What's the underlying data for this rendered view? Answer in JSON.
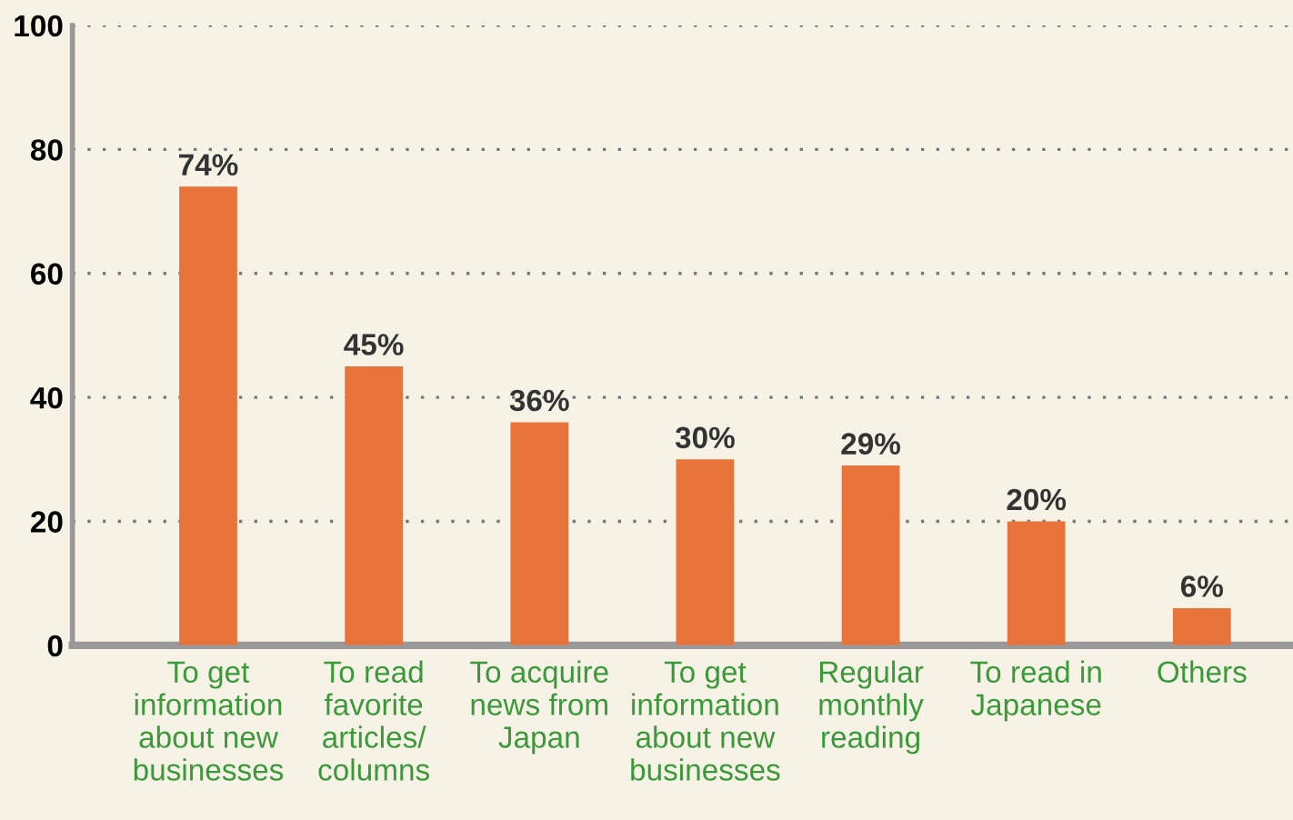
{
  "chart_data": {
    "type": "bar",
    "categories": [
      "To get\ninformation\nabout new\nbusinesses",
      "To read\nfavorite\narticles/\ncolumns",
      "To acquire\nnews from\nJapan",
      "To get\ninformation\nabout new\nbusinesses",
      "Regular\nmonthly\nreading",
      "To read in\nJapanese",
      "Others"
    ],
    "values": [
      74,
      45,
      36,
      30,
      29,
      20,
      6
    ],
    "value_labels": [
      "74%",
      "45%",
      "36%",
      "30%",
      "29%",
      "20%",
      "6%"
    ],
    "color": "#e8743b",
    "ylim": [
      0,
      100
    ],
    "yticks": [
      0,
      20,
      40,
      60,
      80,
      100
    ],
    "grid": "y"
  }
}
